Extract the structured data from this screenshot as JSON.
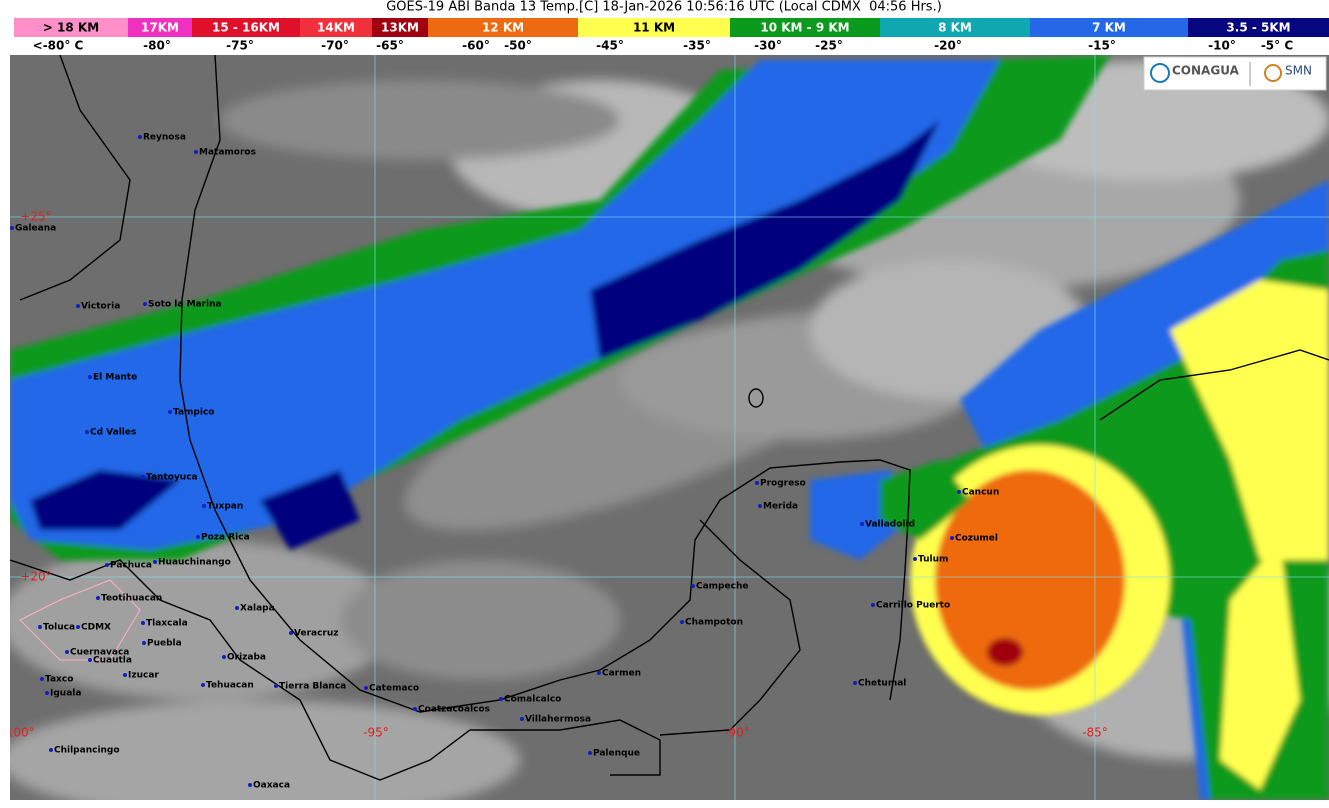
{
  "header": {
    "title": "GOES-19 ABI Banda 13 Temp.[C] 18-Jan-2026 10:56:16 UTC (Local CDMX  04:56 Hrs.)"
  },
  "legend": {
    "bands": [
      {
        "label": "> 18 KM",
        "color": "#ff8fc8"
      },
      {
        "label": "17KM",
        "color": "#f030c0"
      },
      {
        "label": "15 - 16KM",
        "color": "#e0102a"
      },
      {
        "label": "14KM",
        "color": "#f0303a"
      },
      {
        "label": "13KM",
        "color": "#a00010"
      },
      {
        "label": "12 KM",
        "color": "#ee6a10"
      },
      {
        "label": "11 KM",
        "color": "#ffff50"
      },
      {
        "label": "10 KM - 9 KM",
        "color": "#0c9a1c"
      },
      {
        "label": "8 KM",
        "color": "#10a8b0"
      },
      {
        "label": "7 KM",
        "color": "#2468e8"
      },
      {
        "label": "3.5 - 5KM",
        "color": "#06067e"
      }
    ],
    "temps": [
      "<-80° C",
      "-80°",
      "-75°",
      "-70°",
      "-65°",
      "-60°",
      "-50°",
      "-45°",
      "-35°",
      "-30°",
      "-25°",
      "-20°",
      "-15°",
      "-10°",
      "-5° C"
    ]
  },
  "map": {
    "grid_labels": [
      "+25°",
      "+20°",
      "-100°",
      "-95°",
      "-90°",
      "-85°"
    ],
    "cities": [
      "Reynosa",
      "Matamoros",
      "Galeana",
      "Victoria",
      "Soto la Marina",
      "El Mante",
      "Tampico",
      "Cd Valles",
      "Tantoyuca",
      "Tuxpan",
      "Poza Rica",
      "Pachuca",
      "Huauchinango",
      "Teotihuacan",
      "Xalapa",
      "Toluca",
      "CDMX",
      "Tlaxcala",
      "Puebla",
      "Veracruz",
      "Cuernavaca",
      "Cuautla",
      "Orizaba",
      "Izucar",
      "Taxco",
      "Tehuacan",
      "Tierra Blanca",
      "Catemaco",
      "Iguala",
      "Coatzacoalcos",
      "Comalcalco",
      "Villahermosa",
      "Carmen",
      "Chilpancingo",
      "Palenque",
      "Oaxaca",
      "Campeche",
      "Champoton",
      "Progreso",
      "Merida",
      "Valladolid",
      "Cancun",
      "Cozumel",
      "Tulum",
      "Carrillo Puerto",
      "Chetumal"
    ]
  },
  "logos": [
    "CONAGUA",
    "SMN"
  ]
}
